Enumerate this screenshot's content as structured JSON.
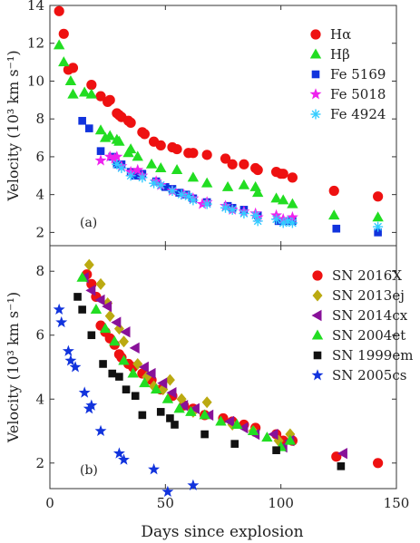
{
  "figure": {
    "xlabel": "Days since explosion",
    "x_ticks": [
      "0",
      "50",
      "100",
      "150"
    ]
  },
  "chart_data": [
    {
      "type": "scatter",
      "panel_label": "(a)",
      "ylabel": "Velocity (10³ km s⁻¹)",
      "xlim": [
        0,
        150
      ],
      "ylim": [
        1.3,
        14
      ],
      "y_ticks": [
        "2",
        "4",
        "6",
        "8",
        "10",
        "12",
        "14"
      ],
      "legend": "top-right",
      "series": [
        {
          "name": "Hα",
          "marker": "circle",
          "color": "#ee1111",
          "x": [
            4,
            6,
            8,
            10,
            18,
            22,
            25,
            26,
            29,
            30,
            31,
            34,
            35,
            40,
            41,
            45,
            48,
            53,
            55,
            60,
            62,
            68,
            76,
            79,
            84,
            89,
            90,
            98,
            100,
            101,
            105,
            123,
            142
          ],
          "y": [
            13.7,
            12.5,
            10.6,
            10.7,
            9.8,
            9.2,
            8.9,
            9.0,
            8.3,
            8.2,
            8.1,
            7.9,
            7.8,
            7.3,
            7.2,
            6.8,
            6.6,
            6.5,
            6.4,
            6.2,
            6.2,
            6.1,
            5.9,
            5.6,
            5.6,
            5.4,
            5.3,
            5.2,
            5.1,
            5.1,
            4.9,
            4.2,
            3.9
          ]
        },
        {
          "name": "Hβ",
          "marker": "triangle",
          "color": "#22dd22",
          "x": [
            4,
            6,
            9,
            10,
            15,
            18,
            22,
            24,
            26,
            29,
            30,
            34,
            35,
            38,
            44,
            48,
            55,
            62,
            68,
            77,
            84,
            89,
            90,
            98,
            101,
            105,
            123,
            142
          ],
          "y": [
            11.9,
            11.0,
            10.0,
            9.3,
            9.4,
            9.3,
            7.4,
            7.0,
            7.1,
            6.9,
            6.8,
            6.2,
            6.4,
            6.0,
            5.6,
            5.4,
            5.3,
            4.9,
            4.6,
            4.4,
            4.5,
            4.4,
            4.1,
            3.8,
            3.7,
            3.5,
            2.9,
            2.8
          ]
        },
        {
          "name": "Fe 5169",
          "marker": "square",
          "color": "#1133dd",
          "x": [
            14,
            17,
            22,
            27,
            29,
            31,
            35,
            37,
            40,
            46,
            50,
            53,
            56,
            59,
            62,
            68,
            77,
            79,
            84,
            90,
            99,
            101,
            105,
            124,
            142
          ],
          "y": [
            7.9,
            7.5,
            6.3,
            6.0,
            5.6,
            5.6,
            5.2,
            5.0,
            5.1,
            4.7,
            4.4,
            4.3,
            4.1,
            4.0,
            3.8,
            3.6,
            3.4,
            3.3,
            3.2,
            2.9,
            2.6,
            2.6,
            2.6,
            2.2,
            2.0
          ]
        },
        {
          "name": "Fe 5018",
          "marker": "star",
          "color": "#ee22ee",
          "x": [
            22,
            26,
            28,
            29,
            31,
            35,
            38,
            40,
            46,
            48,
            53,
            58,
            62,
            66,
            68,
            76,
            79,
            84,
            89,
            90,
            98,
            101,
            105
          ],
          "y": [
            5.8,
            6.0,
            5.9,
            6.0,
            5.5,
            5.2,
            5.3,
            5.0,
            4.7,
            4.5,
            4.2,
            4.0,
            3.8,
            3.5,
            3.6,
            3.4,
            3.2,
            3.1,
            3.0,
            2.8,
            2.9,
            2.7,
            2.8
          ]
        },
        {
          "name": "Fe 4924",
          "marker": "asterisk",
          "color": "#33ccff",
          "x": [
            29,
            31,
            35,
            40,
            45,
            48,
            53,
            57,
            60,
            62,
            68,
            76,
            79,
            84,
            89,
            90,
            98,
            101,
            103,
            105,
            142
          ],
          "y": [
            5.6,
            5.4,
            5.0,
            4.9,
            4.6,
            4.5,
            4.2,
            4.0,
            3.9,
            3.7,
            3.5,
            3.3,
            3.2,
            3.0,
            2.9,
            2.6,
            2.7,
            2.5,
            2.6,
            2.5,
            2.3
          ]
        }
      ]
    },
    {
      "type": "scatter",
      "panel_label": "(b)",
      "ylabel": "Velocity (10³ km s⁻¹)",
      "xlim": [
        0,
        150
      ],
      "ylim": [
        1.2,
        8.8
      ],
      "y_ticks": [
        "2",
        "4",
        "6",
        "8"
      ],
      "legend": "top-right",
      "series": [
        {
          "name": "SN 2016X",
          "marker": "circle",
          "color": "#ee1111",
          "x": [
            16,
            18,
            20,
            22,
            24,
            26,
            28,
            30,
            31,
            34,
            36,
            40,
            44,
            48,
            53,
            58,
            62,
            67,
            75,
            79,
            84,
            89,
            98,
            101,
            105,
            124,
            142
          ],
          "y": [
            7.9,
            7.6,
            7.2,
            6.3,
            6.1,
            5.9,
            5.7,
            5.4,
            5.3,
            5.1,
            5.0,
            4.8,
            4.6,
            4.3,
            4.1,
            3.8,
            3.7,
            3.5,
            3.4,
            3.3,
            3.2,
            3.1,
            2.9,
            2.7,
            2.7,
            2.2,
            2.0
          ]
        },
        {
          "name": "SN 2013ej",
          "marker": "diamond",
          "color": "#bbaa11",
          "x": [
            17,
            22,
            25,
            26,
            30,
            32,
            38,
            42,
            45,
            49,
            52,
            57,
            62,
            68,
            79,
            88,
            99,
            104
          ],
          "y": [
            8.2,
            7.6,
            7.0,
            6.6,
            6.2,
            5.8,
            5.1,
            4.7,
            4.4,
            4.3,
            4.6,
            4.0,
            3.6,
            3.9,
            3.2,
            3.0,
            2.7,
            2.9
          ]
        },
        {
          "name": "SN 2014cx",
          "marker": "tri-left",
          "color": "#881199",
          "x": [
            15,
            18,
            22,
            25,
            29,
            33,
            37,
            41,
            44,
            49,
            53,
            58,
            63,
            69,
            78,
            84,
            89,
            97,
            101,
            104,
            127
          ],
          "y": [
            7.8,
            7.4,
            7.1,
            6.9,
            6.4,
            6.1,
            5.6,
            5.0,
            4.8,
            4.5,
            4.2,
            3.8,
            3.7,
            3.5,
            3.3,
            3.1,
            2.9,
            2.9,
            2.5,
            2.7,
            2.3
          ]
        },
        {
          "name": "SN 2004et",
          "marker": "triangle",
          "color": "#22dd22",
          "x": [
            14,
            20,
            24,
            28,
            32,
            36,
            41,
            46,
            51,
            56,
            61,
            67,
            74,
            81,
            88,
            94,
            100,
            104
          ],
          "y": [
            7.8,
            6.8,
            6.2,
            5.8,
            5.2,
            4.8,
            4.5,
            4.3,
            4.0,
            3.7,
            3.6,
            3.5,
            3.3,
            3.2,
            3.0,
            2.8,
            2.5,
            2.7
          ]
        },
        {
          "name": "SN 1999em",
          "marker": "square",
          "color": "#111111",
          "x": [
            12,
            14,
            18,
            23,
            27,
            30,
            33,
            37,
            40,
            48,
            52,
            54,
            67,
            80,
            98,
            126
          ],
          "y": [
            7.2,
            6.8,
            6.0,
            5.1,
            4.8,
            4.7,
            4.3,
            4.1,
            3.5,
            3.6,
            3.4,
            3.2,
            2.9,
            2.6,
            2.4,
            1.9
          ]
        },
        {
          "name": "SN 2005cs",
          "marker": "star",
          "color": "#1133dd",
          "x": [
            4,
            5,
            8,
            9,
            11,
            15,
            17,
            18,
            22,
            30,
            32,
            45,
            51,
            62
          ],
          "y": [
            6.8,
            6.4,
            5.5,
            5.2,
            5.0,
            4.2,
            3.7,
            3.8,
            3.0,
            2.3,
            2.1,
            1.8,
            1.1,
            1.3
          ]
        }
      ]
    }
  ]
}
